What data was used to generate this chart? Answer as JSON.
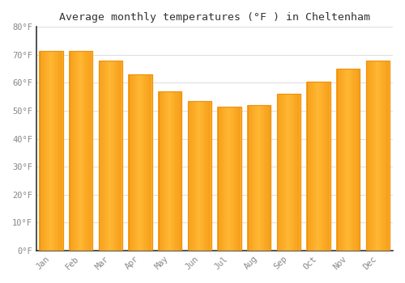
{
  "title": "Average monthly temperatures (°F ) in Cheltenham",
  "months": [
    "Jan",
    "Feb",
    "Mar",
    "Apr",
    "May",
    "Jun",
    "Jul",
    "Aug",
    "Sep",
    "Oct",
    "Nov",
    "Dec"
  ],
  "values": [
    71.5,
    71.5,
    68,
    63,
    57,
    53.5,
    51.5,
    52,
    56,
    60.5,
    65,
    68
  ],
  "bar_color_center": "#FFB733",
  "bar_color_edge": "#F0900A",
  "background_color": "#FFFFFF",
  "grid_color": "#E0E0E0",
  "tick_label_color": "#888888",
  "title_color": "#333333",
  "ylim": [
    0,
    80
  ],
  "ytick_step": 10,
  "figsize": [
    5.0,
    3.5
  ],
  "dpi": 100
}
